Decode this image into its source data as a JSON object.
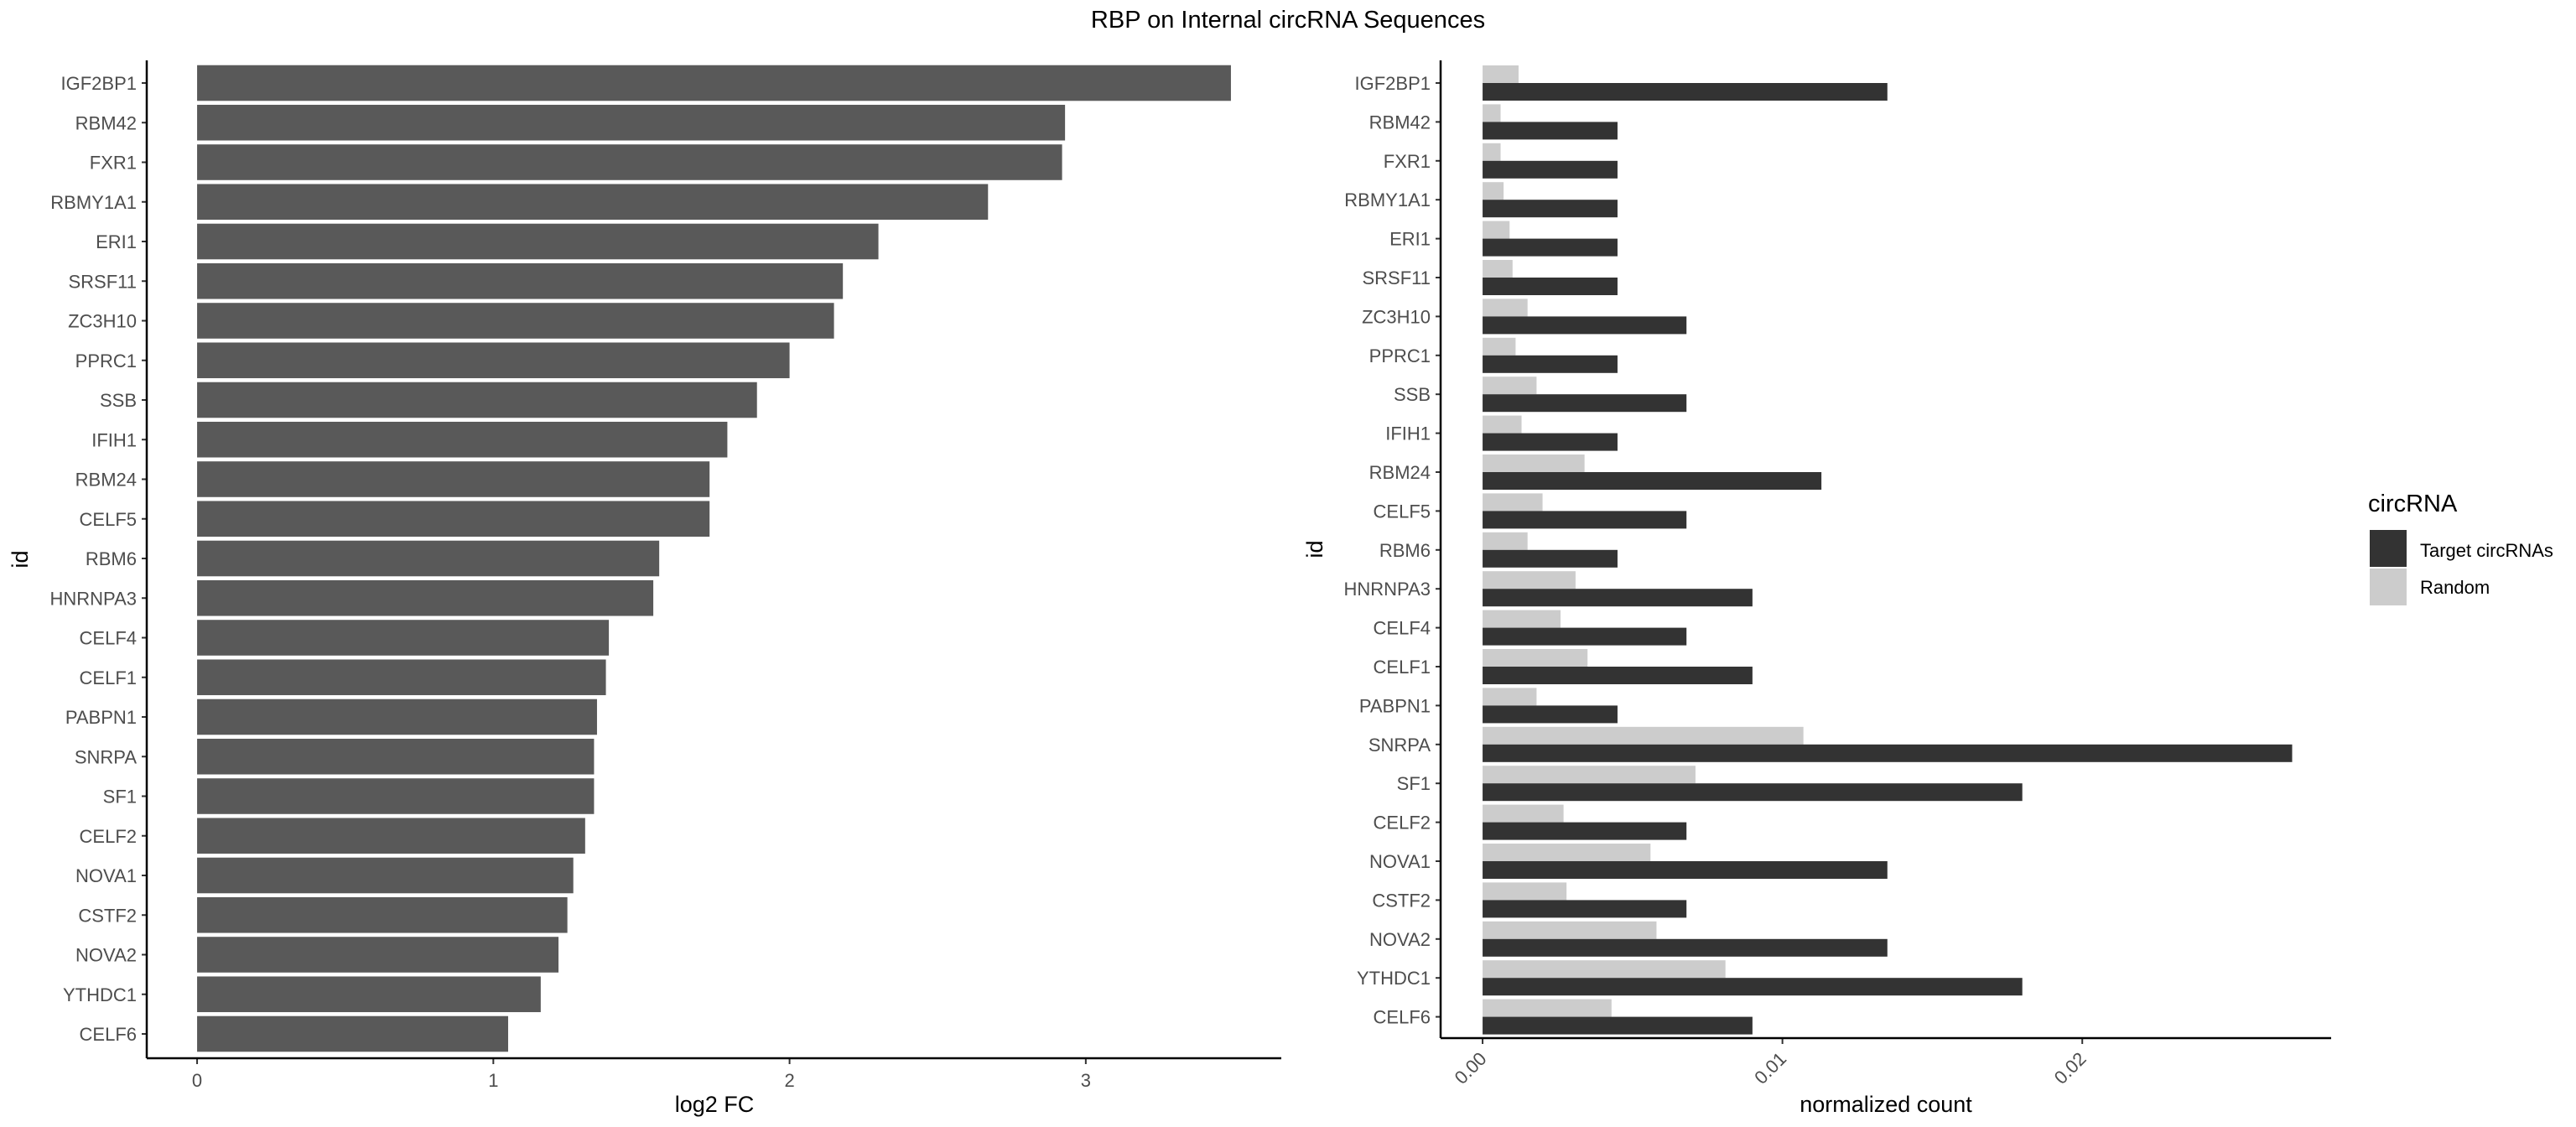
{
  "title": "RBP on Internal circRNA Sequences",
  "chart_data": [
    {
      "type": "bar",
      "orientation": "horizontal",
      "categories": [
        "IGF2BP1",
        "RBM42",
        "FXR1",
        "RBMY1A1",
        "ERI1",
        "SRSF11",
        "ZC3H10",
        "PPRC1",
        "SSB",
        "IFIH1",
        "RBM24",
        "CELF5",
        "RBM6",
        "HNRNPA3",
        "CELF4",
        "CELF1",
        "PABPN1",
        "SNRPA",
        "SF1",
        "CELF2",
        "NOVA1",
        "CSTF2",
        "NOVA2",
        "YTHDC1",
        "CELF6"
      ],
      "values": [
        3.49,
        2.93,
        2.92,
        2.67,
        2.3,
        2.18,
        2.15,
        2.0,
        1.89,
        1.79,
        1.73,
        1.73,
        1.56,
        1.54,
        1.39,
        1.38,
        1.35,
        1.34,
        1.34,
        1.31,
        1.27,
        1.25,
        1.22,
        1.16,
        1.05
      ],
      "xlabel": "log2 FC",
      "ylabel": "id",
      "xlim": [
        -0.17,
        3.66
      ],
      "x_ticks": [
        "0",
        "1",
        "2",
        "3"
      ],
      "bar_color": "#595959",
      "grid": false
    },
    {
      "type": "bar",
      "orientation": "horizontal",
      "grouped": true,
      "categories": [
        "IGF2BP1",
        "RBM42",
        "FXR1",
        "RBMY1A1",
        "ERI1",
        "SRSF11",
        "ZC3H10",
        "PPRC1",
        "SSB",
        "IFIH1",
        "RBM24",
        "CELF5",
        "RBM6",
        "HNRNPA3",
        "CELF4",
        "CELF1",
        "PABPN1",
        "SNRPA",
        "SF1",
        "CELF2",
        "NOVA1",
        "CSTF2",
        "NOVA2",
        "YTHDC1",
        "CELF6"
      ],
      "series": [
        {
          "name": "Target circRNAs",
          "color": "#333333",
          "values": [
            0.0135,
            0.0045,
            0.0045,
            0.0045,
            0.0045,
            0.0045,
            0.0068,
            0.0045,
            0.0068,
            0.0045,
            0.0113,
            0.0068,
            0.0045,
            0.009,
            0.0068,
            0.009,
            0.0045,
            0.027,
            0.018,
            0.0068,
            0.0135,
            0.0068,
            0.0135,
            0.018,
            0.009
          ]
        },
        {
          "name": "Random",
          "color": "#cccccc",
          "values": [
            0.0012,
            0.0006,
            0.0006,
            0.0007,
            0.0009,
            0.001,
            0.0015,
            0.0011,
            0.0018,
            0.0013,
            0.0034,
            0.002,
            0.0015,
            0.0031,
            0.0026,
            0.0035,
            0.0018,
            0.0107,
            0.0071,
            0.0027,
            0.0056,
            0.0028,
            0.0058,
            0.0081,
            0.0043
          ]
        }
      ],
      "xlabel": "normalized count",
      "ylabel": "id",
      "xlim": [
        -0.0014,
        0.0283
      ],
      "x_ticks": [
        "0.00",
        "0.01",
        "0.02"
      ],
      "legend": {
        "title": "circRNA",
        "position": "right"
      },
      "grid": false
    }
  ]
}
